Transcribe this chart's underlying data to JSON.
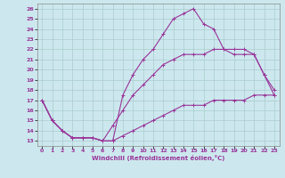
{
  "xlabel": "Windchill (Refroidissement éolien,°C)",
  "background_color": "#cce8ee",
  "line_color": "#993399",
  "grid_color": "#aacccc",
  "xlim": [
    -0.5,
    23.5
  ],
  "ylim": [
    12.5,
    26.5
  ],
  "xticks": [
    0,
    1,
    2,
    3,
    4,
    5,
    6,
    7,
    8,
    9,
    10,
    11,
    12,
    13,
    14,
    15,
    16,
    17,
    18,
    19,
    20,
    21,
    22,
    23
  ],
  "yticks": [
    13,
    14,
    15,
    16,
    17,
    18,
    19,
    20,
    21,
    22,
    23,
    24,
    25,
    26
  ],
  "line1_x": [
    0,
    1,
    2,
    3,
    4,
    5,
    6,
    7,
    8,
    9,
    10,
    11,
    12,
    13,
    14,
    15,
    16,
    17,
    18,
    19,
    20,
    21,
    22,
    23
  ],
  "line1_y": [
    17.0,
    15.0,
    14.0,
    13.3,
    13.3,
    13.3,
    13.0,
    13.0,
    17.5,
    19.5,
    21.0,
    22.0,
    23.5,
    25.0,
    25.5,
    26.0,
    24.5,
    24.0,
    22.0,
    21.5,
    21.5,
    21.5,
    19.5,
    18.0
  ],
  "line2_x": [
    0,
    1,
    2,
    3,
    4,
    5,
    6,
    7,
    8,
    9,
    10,
    11,
    12,
    13,
    14,
    15,
    16,
    17,
    18,
    19,
    20,
    21,
    22,
    23
  ],
  "line2_y": [
    17.0,
    15.0,
    14.0,
    13.3,
    13.3,
    13.3,
    13.0,
    14.5,
    16.0,
    17.5,
    18.5,
    19.5,
    20.5,
    21.0,
    21.5,
    21.5,
    21.5,
    22.0,
    22.0,
    22.0,
    22.0,
    21.5,
    19.5,
    17.5
  ],
  "line3_x": [
    0,
    1,
    2,
    3,
    4,
    5,
    6,
    7,
    8,
    9,
    10,
    11,
    12,
    13,
    14,
    15,
    16,
    17,
    18,
    19,
    20,
    21,
    22,
    23
  ],
  "line3_y": [
    17.0,
    15.0,
    14.0,
    13.3,
    13.3,
    13.3,
    13.0,
    13.0,
    13.5,
    14.0,
    14.5,
    15.0,
    15.5,
    16.0,
    16.5,
    16.5,
    16.5,
    17.0,
    17.0,
    17.0,
    17.0,
    17.5,
    17.5,
    17.5
  ]
}
